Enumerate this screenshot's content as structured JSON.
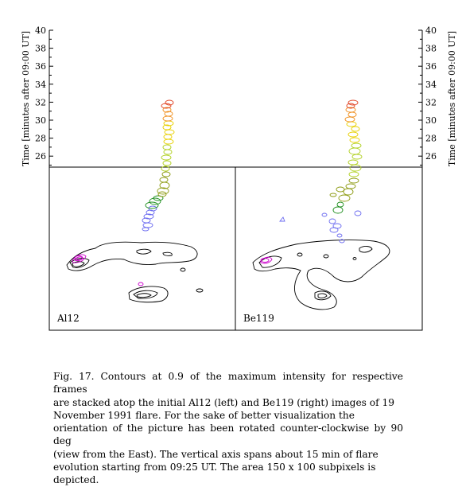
{
  "figure": {
    "y_axis": {
      "label": "Time [minutes after 09:00 UT]",
      "ticks": [
        "40",
        "38",
        "36",
        "34",
        "32",
        "30",
        "28",
        "26"
      ]
    },
    "panels": [
      {
        "label": "Al12",
        "image": "Al12 soft X-ray contour image with stacked flare contours"
      },
      {
        "label": "Be119",
        "image": "Be119 soft X-ray contour image with stacked flare contours"
      }
    ],
    "colors": {
      "black": "#000000",
      "magenta": "#cc00cc",
      "blue": "#6b6bf0",
      "green": "#1a8c1a",
      "olive": "#8c9a10",
      "yellowgreen": "#b0d020",
      "yellow": "#e8d000",
      "orange": "#f09020",
      "red": "#e04020"
    }
  },
  "caption": {
    "lines": [
      "Fig. 17. Contours at 0.9 of the maximum intensity for respective frames",
      "are stacked atop the initial Al12 (left) and Be119 (right) images of 19",
      "November 1991 flare. For the sake of better visualization the",
      "orientation of the picture has been rotated counter-clockwise by 90 deg",
      "(view from the East). The vertical axis spans about 15 min of flare",
      "evolution starting from 09:25 UT. The area 150 x 100 subpixels is",
      "depicted."
    ]
  }
}
